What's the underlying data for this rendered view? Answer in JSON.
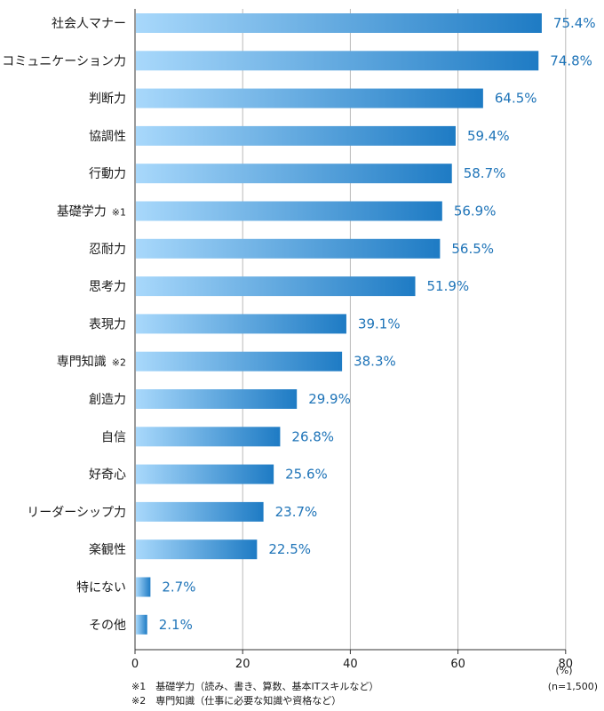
{
  "chart_data": {
    "type": "bar",
    "orientation": "horizontal",
    "categories": [
      {
        "label": "社会人マナー",
        "note": ""
      },
      {
        "label": "コミュニケーション力",
        "note": ""
      },
      {
        "label": "判断力",
        "note": ""
      },
      {
        "label": "協調性",
        "note": ""
      },
      {
        "label": "行動力",
        "note": ""
      },
      {
        "label": "基礎学力",
        "note": "※1"
      },
      {
        "label": "忍耐力",
        "note": ""
      },
      {
        "label": "思考力",
        "note": ""
      },
      {
        "label": "表現力",
        "note": ""
      },
      {
        "label": "専門知識",
        "note": "※2"
      },
      {
        "label": "創造力",
        "note": ""
      },
      {
        "label": "自信",
        "note": ""
      },
      {
        "label": "好奇心",
        "note": ""
      },
      {
        "label": "リーダーシップ力",
        "note": ""
      },
      {
        "label": "楽観性",
        "note": ""
      },
      {
        "label": "特にない",
        "note": ""
      },
      {
        "label": "その他",
        "note": ""
      }
    ],
    "values": [
      75.4,
      74.8,
      64.5,
      59.4,
      58.7,
      56.9,
      56.5,
      51.9,
      39.1,
      38.3,
      29.9,
      26.8,
      25.6,
      23.7,
      22.5,
      2.7,
      2.1
    ],
    "value_labels": [
      "75.4%",
      "74.8%",
      "64.5%",
      "59.4%",
      "58.7%",
      "56.9%",
      "56.5%",
      "51.9%",
      "39.1%",
      "38.3%",
      "29.9%",
      "26.8%",
      "25.6%",
      "23.7%",
      "22.5%",
      "2.7%",
      "2.1%"
    ],
    "xlim": [
      0,
      80
    ],
    "x_ticks": [
      "0",
      "20",
      "40",
      "60",
      "80"
    ],
    "unit": "(%)",
    "sample_size": "(n=1,500)",
    "grid": true,
    "legend": "none",
    "bar_gradient": [
      "#a8d8fb",
      "#1e7bc4"
    ],
    "value_label_color": "#1f74b8",
    "footnotes": [
      "※1　基礎学力（読み、書き、算数、基本ITスキルなど）",
      "※2　専門知識（仕事に必要な知識や資格など）"
    ]
  }
}
